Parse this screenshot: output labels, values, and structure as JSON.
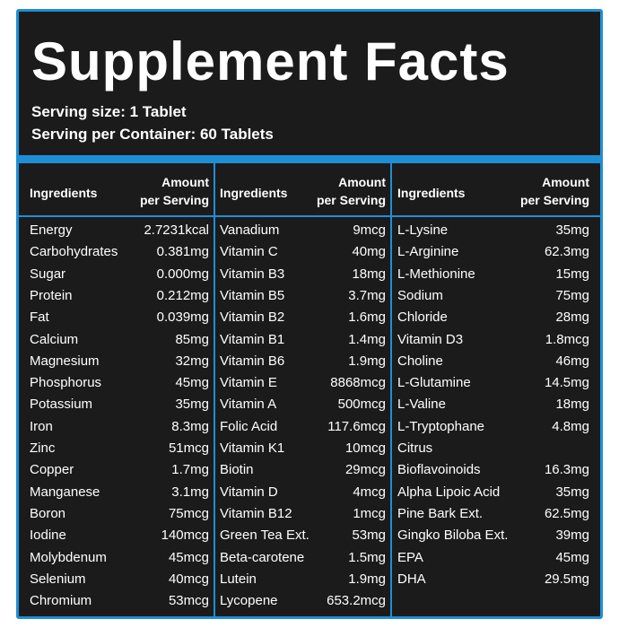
{
  "header": {
    "title": "Supplement Facts",
    "serving_size": "Serving size: 1 Tablet",
    "serving_per_container": "Serving per Container: 60 Tablets"
  },
  "columns": [
    {
      "ingredient_header": "Ingredients",
      "amount_header": [
        "Amount",
        "per Serving"
      ],
      "items": [
        [
          "Energy",
          "2.7231kcal"
        ],
        [
          "Carbohydrates",
          "0.381mg"
        ],
        [
          "Sugar",
          "0.000mg"
        ],
        [
          "Protein",
          "0.212mg"
        ],
        [
          "Fat",
          "0.039mg"
        ],
        [
          "Calcium",
          "85mg"
        ],
        [
          "Magnesium",
          "32mg"
        ],
        [
          "Phosphorus",
          "45mg"
        ],
        [
          "Potassium",
          "35mg"
        ],
        [
          "Iron",
          "8.3mg"
        ],
        [
          "Zinc",
          "51mcg"
        ],
        [
          "Copper",
          "1.7mg"
        ],
        [
          "Manganese",
          "3.1mg"
        ],
        [
          "Boron",
          "75mcg"
        ],
        [
          "Iodine",
          "140mcg"
        ],
        [
          "Molybdenum",
          "45mcg"
        ],
        [
          "Selenium",
          "40mcg"
        ],
        [
          "Chromium",
          "53mcg"
        ]
      ]
    },
    {
      "ingredient_header": "Ingredients",
      "amount_header": [
        "Amount",
        "per Serving"
      ],
      "items": [
        [
          "Vanadium",
          "9mcg"
        ],
        [
          "Vitamin C",
          "40mg"
        ],
        [
          "Vitamin B3",
          "18mg"
        ],
        [
          "Vitamin B5",
          "3.7mg"
        ],
        [
          "Vitamin B2",
          "1.6mg"
        ],
        [
          "Vitamin B1",
          "1.4mg"
        ],
        [
          "Vitamin B6",
          "1.9mg"
        ],
        [
          "Vitamin E",
          "8868mcg"
        ],
        [
          "Vitamin A",
          "500mcg"
        ],
        [
          "Folic Acid",
          "117.6mcg"
        ],
        [
          "Vitamin K1",
          "10mcg"
        ],
        [
          "Biotin",
          "29mcg"
        ],
        [
          "Vitamin D",
          "4mcg"
        ],
        [
          "Vitamin B12",
          "1mcg"
        ],
        [
          "Green Tea Ext.",
          "53mg"
        ],
        [
          "Beta-carotene",
          "1.5mg"
        ],
        [
          "Lutein",
          "1.9mg"
        ],
        [
          "Lycopene",
          "653.2mcg"
        ]
      ]
    },
    {
      "ingredient_header": "Ingredients",
      "amount_header": [
        "Amount",
        "per Serving"
      ],
      "items": [
        [
          "L-Lysine",
          "35mg"
        ],
        [
          "L-Arginine",
          "62.3mg"
        ],
        [
          "L-Methionine",
          "15mg"
        ],
        [
          "Sodium",
          "75mg"
        ],
        [
          "Chloride",
          "28mg"
        ],
        [
          "Vitamin D3",
          "1.8mcg"
        ],
        [
          "Choline",
          "46mg"
        ],
        [
          "L-Glutamine",
          "14.5mg"
        ],
        [
          "L-Valine",
          "18mg"
        ],
        [
          "L-Tryptophane",
          "4.8mg"
        ],
        [
          "Citrus"
        ],
        [
          "Bioflavoinoids",
          "16.3mg"
        ],
        [
          "Alpha Lipoic Acid",
          "35mg"
        ],
        [
          "Pine Bark Ext.",
          "62.5mg"
        ],
        [
          "Gingko Biloba Ext.",
          "39mg"
        ],
        [
          "EPA",
          "45mg"
        ],
        [
          "DHA",
          "29.5mg"
        ]
      ]
    }
  ]
}
